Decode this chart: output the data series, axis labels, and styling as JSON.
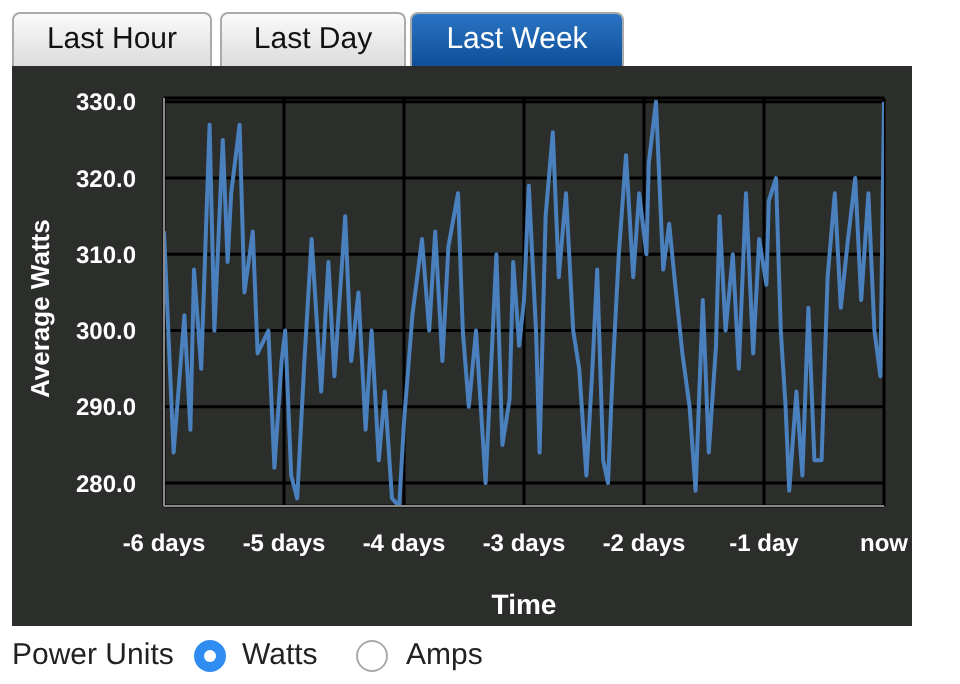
{
  "chart_data": {
    "type": "line",
    "xlabel": "Time",
    "ylabel": "Average Watts",
    "annotations": [
      "Last Hour",
      "Last Day",
      "Last Week",
      "Power Units",
      "Watts",
      "Amps"
    ],
    "xlim": [
      -6,
      0
    ],
    "ylim": [
      277,
      330.5
    ],
    "xticks": [
      {
        "value": -6,
        "label": "-6 days"
      },
      {
        "value": -5,
        "label": "-5 days"
      },
      {
        "value": -4,
        "label": "-4 days"
      },
      {
        "value": -3,
        "label": "-3 days"
      },
      {
        "value": -2,
        "label": "-2 days"
      },
      {
        "value": -1,
        "label": "-1 day"
      },
      {
        "value": 0,
        "label": "now"
      }
    ],
    "yticks": [
      {
        "value": 280,
        "label": "280.0"
      },
      {
        "value": 290,
        "label": "290.0"
      },
      {
        "value": 300,
        "label": "300.0"
      },
      {
        "value": 310,
        "label": "310.0"
      },
      {
        "value": 320,
        "label": "320.0"
      },
      {
        "value": 330,
        "label": "330.0"
      }
    ],
    "grid": true,
    "x": [
      -6.0,
      -5.92,
      -5.83,
      -5.78,
      -5.75,
      -5.69,
      -5.62,
      -5.58,
      -5.51,
      -5.47,
      -5.44,
      -5.37,
      -5.33,
      -5.26,
      -5.22,
      -5.13,
      -5.08,
      -5.02,
      -4.99,
      -4.94,
      -4.89,
      -4.83,
      -4.77,
      -4.69,
      -4.63,
      -4.58,
      -4.49,
      -4.44,
      -4.38,
      -4.32,
      -4.27,
      -4.21,
      -4.16,
      -4.1,
      -4.04,
      -4.0,
      -3.93,
      -3.85,
      -3.79,
      -3.74,
      -3.68,
      -3.63,
      -3.55,
      -3.51,
      -3.46,
      -3.4,
      -3.34,
      -3.32,
      -3.23,
      -3.18,
      -3.12,
      -3.09,
      -3.04,
      -3.0,
      -2.96,
      -2.9,
      -2.87,
      -2.82,
      -2.76,
      -2.71,
      -2.65,
      -2.59,
      -2.54,
      -2.48,
      -2.43,
      -2.39,
      -2.34,
      -2.3,
      -2.26,
      -2.21,
      -2.15,
      -2.09,
      -2.04,
      -1.98,
      -1.96,
      -1.9,
      -1.84,
      -1.79,
      -1.74,
      -1.68,
      -1.62,
      -1.57,
      -1.51,
      -1.46,
      -1.4,
      -1.37,
      -1.32,
      -1.26,
      -1.21,
      -1.15,
      -1.09,
      -1.04,
      -0.98,
      -0.96,
      -0.9,
      -0.86,
      -0.82,
      -0.79,
      -0.73,
      -0.68,
      -0.63,
      -0.58,
      -0.52,
      -0.47,
      -0.41,
      -0.36,
      -0.3,
      -0.24,
      -0.19,
      -0.13,
      -0.08,
      -0.03,
      0.0
    ],
    "series": [
      {
        "color": "#4a80bd",
        "values": [
          313,
          284,
          302,
          287,
          308,
          295,
          327,
          300,
          325,
          309,
          318,
          327,
          305,
          313,
          297,
          300,
          282,
          296,
          300,
          281,
          278,
          296,
          312,
          292,
          309,
          294,
          315,
          296,
          305,
          287,
          300,
          283,
          292,
          278,
          277,
          288,
          302,
          312,
          300,
          313,
          296,
          311,
          318,
          300,
          290,
          300,
          285,
          280,
          310,
          285,
          291,
          309,
          298,
          304,
          319,
          300,
          284,
          315,
          326,
          307,
          318,
          300,
          295,
          281,
          295,
          308,
          283,
          280,
          295,
          310,
          323,
          307,
          318,
          310,
          322,
          330,
          308,
          314,
          306,
          297,
          290,
          279,
          304,
          284,
          298,
          315,
          300,
          310,
          295,
          318,
          297,
          312,
          306,
          317,
          320,
          300,
          290,
          279,
          292,
          281,
          303,
          283,
          283,
          307,
          318,
          303,
          312,
          320,
          304,
          318,
          300,
          294,
          330
        ]
      }
    ]
  }
}
